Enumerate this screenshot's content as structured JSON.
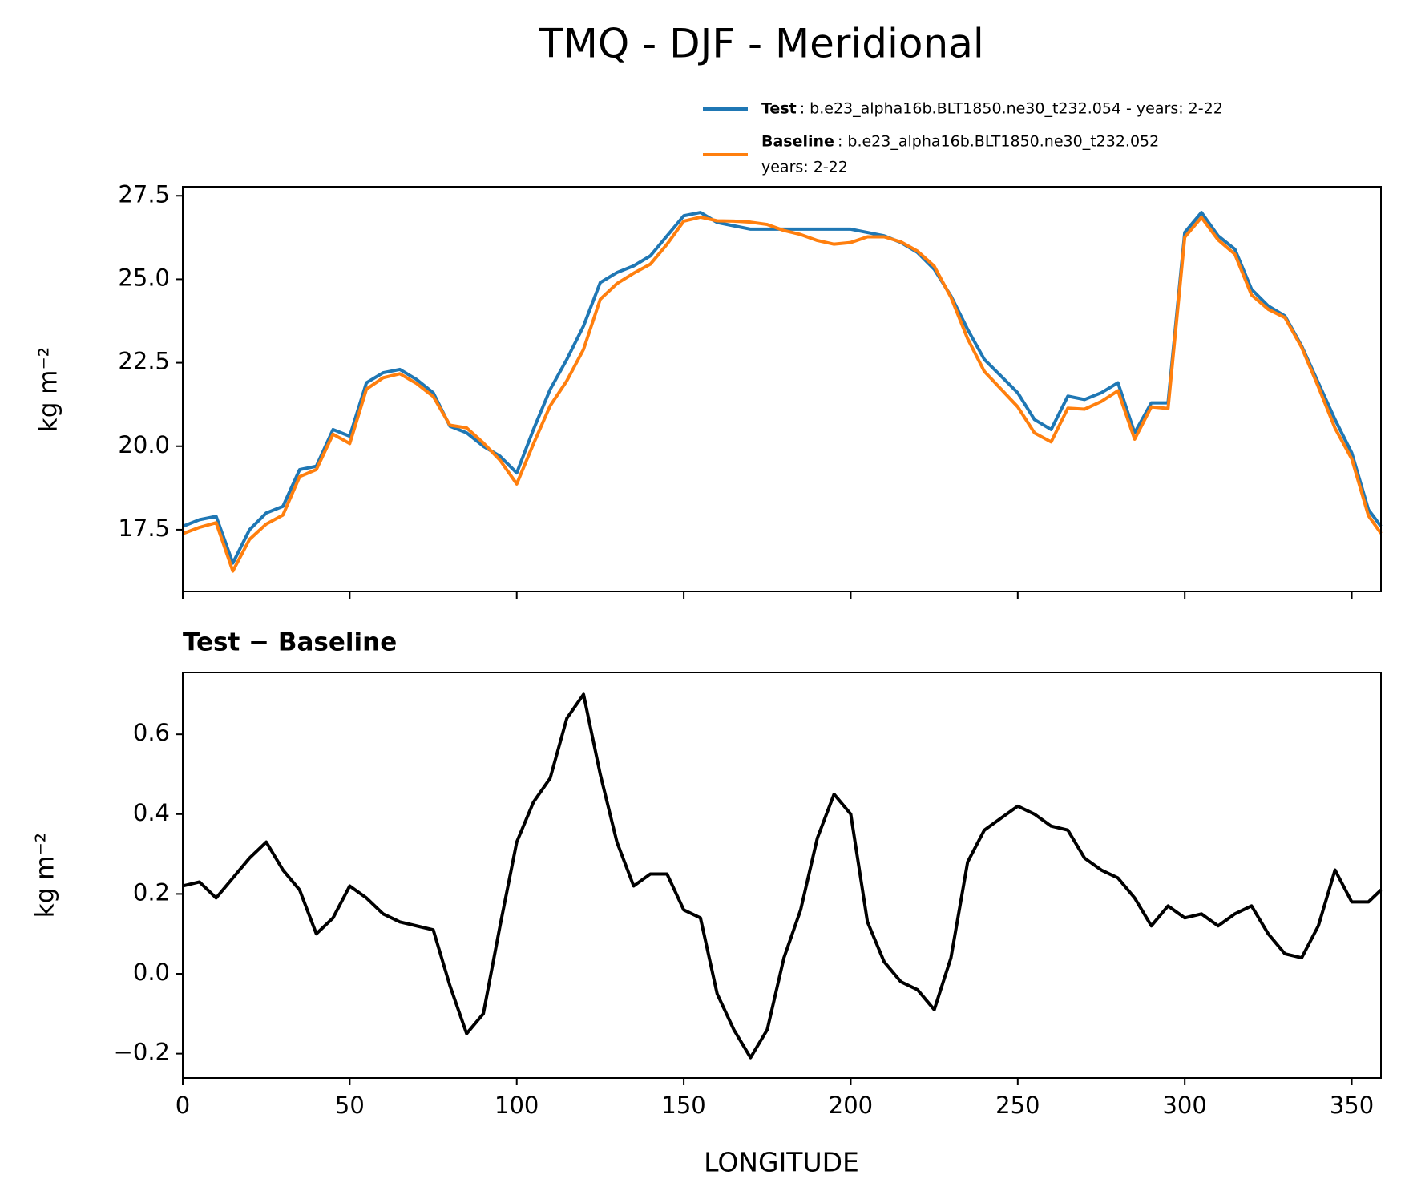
{
  "chart_data": [
    {
      "type": "line",
      "title": "TMQ - DJF - Meridional",
      "ylabel": "kg m⁻²",
      "x": [
        0,
        5,
        10,
        15,
        20,
        25,
        30,
        35,
        40,
        45,
        50,
        55,
        60,
        65,
        70,
        75,
        80,
        85,
        90,
        95,
        100,
        105,
        110,
        115,
        120,
        125,
        130,
        135,
        140,
        145,
        150,
        155,
        160,
        165,
        170,
        175,
        180,
        185,
        190,
        195,
        200,
        205,
        210,
        215,
        220,
        225,
        230,
        235,
        240,
        245,
        250,
        255,
        260,
        265,
        270,
        275,
        280,
        285,
        290,
        295,
        300,
        305,
        310,
        315,
        320,
        325,
        330,
        335,
        340,
        345,
        350,
        355,
        358.75
      ],
      "series": [
        {
          "name": "Test",
          "label_lines": [
            ": b.e23_alpha16b.BLT1850.ne30_t232.054 - years: 2-22"
          ],
          "color": "#1f77b4",
          "values": [
            17.6,
            17.8,
            17.9,
            16.5,
            17.5,
            18.0,
            18.2,
            19.3,
            19.4,
            20.5,
            20.3,
            21.9,
            22.2,
            22.3,
            22.0,
            21.6,
            20.6,
            20.4,
            20.0,
            19.7,
            19.2,
            20.5,
            21.7,
            22.6,
            23.6,
            24.9,
            25.2,
            25.4,
            25.7,
            26.3,
            26.9,
            27.0,
            26.7,
            26.6,
            26.5,
            26.5,
            26.5,
            26.5,
            26.5,
            26.5,
            26.5,
            26.4,
            26.3,
            26.1,
            25.8,
            25.3,
            24.5,
            23.5,
            22.6,
            22.1,
            21.6,
            20.8,
            20.5,
            21.5,
            21.4,
            21.6,
            21.9,
            20.4,
            21.3,
            21.3,
            26.4,
            27.0,
            26.3,
            25.9,
            24.7,
            24.2,
            23.9,
            23.0,
            21.9,
            20.8,
            19.8,
            18.1,
            17.6
          ]
        },
        {
          "name": "Baseline",
          "label_lines": [
            ": b.e23_alpha16b.BLT1850.ne30_t232.052",
            "years: 2-22"
          ],
          "color": "#ff7f0e",
          "values": [
            17.38,
            17.57,
            17.71,
            16.26,
            17.21,
            17.67,
            17.94,
            19.09,
            19.3,
            20.36,
            20.08,
            21.71,
            22.05,
            22.17,
            21.88,
            21.49,
            20.63,
            20.55,
            20.1,
            19.58,
            18.87,
            20.07,
            21.21,
            21.96,
            22.9,
            24.4,
            24.87,
            25.18,
            25.45,
            26.05,
            26.74,
            26.86,
            26.75,
            26.74,
            26.71,
            26.64,
            26.46,
            26.34,
            26.16,
            26.05,
            26.1,
            26.27,
            26.27,
            26.12,
            25.84,
            25.39,
            24.46,
            23.22,
            22.24,
            21.71,
            21.18,
            20.4,
            20.13,
            21.14,
            21.11,
            21.34,
            21.66,
            20.21,
            21.18,
            21.13,
            26.26,
            26.85,
            26.18,
            25.75,
            24.53,
            24.1,
            23.85,
            22.96,
            21.78,
            20.54,
            19.62,
            17.92,
            17.39
          ]
        }
      ],
      "xlim": [
        0,
        358.75
      ],
      "xticks": [
        0,
        50,
        100,
        150,
        200,
        250,
        300,
        350
      ],
      "ylim": [
        15.65,
        27.77
      ],
      "yticks": [
        17.5,
        {
          "value": 20,
          "label": "20.0"
        },
        22.5,
        {
          "value": 25,
          "label": "25.0"
        },
        27.5
      ]
    },
    {
      "type": "line",
      "title": "Test − Baseline",
      "ylabel": "kg m⁻²",
      "xlabel": "LONGITUDE",
      "color": "#000000",
      "x": [
        0,
        5,
        10,
        15,
        20,
        25,
        30,
        35,
        40,
        45,
        50,
        55,
        60,
        65,
        70,
        75,
        80,
        85,
        90,
        95,
        100,
        105,
        110,
        115,
        120,
        125,
        130,
        135,
        140,
        145,
        150,
        155,
        160,
        165,
        170,
        175,
        180,
        185,
        190,
        195,
        200,
        205,
        210,
        215,
        220,
        225,
        230,
        235,
        240,
        245,
        250,
        255,
        260,
        265,
        270,
        275,
        280,
        285,
        290,
        295,
        300,
        305,
        310,
        315,
        320,
        325,
        330,
        335,
        340,
        345,
        350,
        355,
        358.75
      ],
      "values": [
        0.22,
        0.23,
        0.19,
        0.24,
        0.29,
        0.33,
        0.26,
        0.21,
        0.1,
        0.14,
        0.22,
        0.19,
        0.15,
        0.13,
        0.12,
        0.11,
        -0.03,
        -0.15,
        -0.1,
        0.12,
        0.33,
        0.43,
        0.49,
        0.64,
        0.7,
        0.5,
        0.33,
        0.22,
        0.25,
        0.25,
        0.16,
        0.14,
        -0.05,
        -0.14,
        -0.21,
        -0.14,
        0.04,
        0.16,
        0.34,
        0.45,
        0.4,
        0.13,
        0.03,
        -0.02,
        -0.04,
        -0.09,
        0.04,
        0.28,
        0.36,
        0.39,
        0.42,
        0.4,
        0.37,
        0.36,
        0.29,
        0.26,
        0.24,
        0.19,
        0.12,
        0.17,
        0.14,
        0.15,
        0.12,
        0.15,
        0.17,
        0.1,
        0.05,
        0.04,
        0.12,
        0.26,
        0.18,
        0.18,
        0.21
      ],
      "xlim": [
        0,
        358.75
      ],
      "xticks": [
        0,
        50,
        100,
        150,
        200,
        250,
        300,
        350
      ],
      "ylim": [
        -0.261,
        0.755
      ],
      "yticks": [
        {
          "value": -0.2,
          "label": "−0.2"
        },
        {
          "value": 0,
          "label": "0.0"
        },
        0.2,
        0.4,
        0.6
      ]
    }
  ]
}
